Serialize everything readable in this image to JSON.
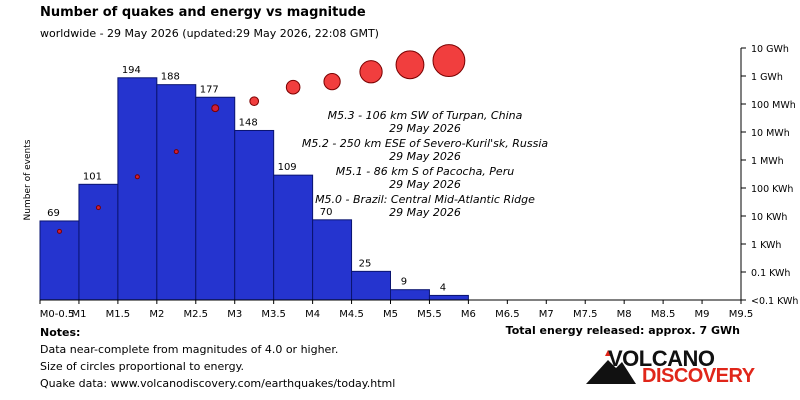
{
  "header": {
    "title": "Number of quakes and energy vs magnitude",
    "subtitle": "worldwide - 29 May 2026 (updated:29 May 2026, 22:08 GMT)"
  },
  "chart_data": {
    "type": "bar",
    "title": "Number of quakes and energy vs magnitude",
    "ylabel": "Number of events",
    "categories": [
      "M0-0.5",
      "M1",
      "M1.5",
      "M2",
      "M2.5",
      "M3",
      "M3.5",
      "M4",
      "M4.5",
      "M5",
      "M5.5",
      "M6",
      "M6.5",
      "M7",
      "M7.5",
      "M8",
      "M8.5",
      "M9",
      "M9.5"
    ],
    "x_ticks": [
      0.5,
      1,
      1.5,
      2,
      2.5,
      3,
      3.5,
      4,
      4.5,
      5,
      5.5,
      6,
      6.5,
      7,
      7.5,
      8,
      8.5,
      9,
      9.5
    ],
    "xlim": [
      0.5,
      9.5
    ],
    "ylim": [
      0,
      220
    ],
    "bars": [
      {
        "from": 0.5,
        "to": 1.0,
        "count": 69
      },
      {
        "from": 1.0,
        "to": 1.5,
        "count": 101
      },
      {
        "from": 1.5,
        "to": 2.0,
        "count": 194
      },
      {
        "from": 2.0,
        "to": 2.5,
        "count": 188
      },
      {
        "from": 2.5,
        "to": 3.0,
        "count": 177
      },
      {
        "from": 3.0,
        "to": 3.5,
        "count": 148
      },
      {
        "from": 3.5,
        "to": 4.0,
        "count": 109
      },
      {
        "from": 4.0,
        "to": 4.5,
        "count": 70
      },
      {
        "from": 4.5,
        "to": 5.0,
        "count": 25
      },
      {
        "from": 5.0,
        "to": 5.5,
        "count": 9
      },
      {
        "from": 5.5,
        "to": 6.0,
        "count": 4
      }
    ],
    "energy_axis": {
      "scale": "log",
      "labels": [
        "<0.1 KWh",
        "0.1 KWh",
        "1 KWh",
        "10 KWh",
        "100 KWh",
        "1 MWh",
        "10 MWh",
        "100 MWh",
        "1 GWh",
        "10 GWh"
      ]
    },
    "energy_circles": [
      {
        "magnitude": 0.75,
        "energy_level": 2.45
      },
      {
        "magnitude": 1.25,
        "energy_level": 3.3
      },
      {
        "magnitude": 1.75,
        "energy_level": 4.4
      },
      {
        "magnitude": 2.25,
        "energy_level": 5.3
      },
      {
        "magnitude": 2.75,
        "energy_level": 6.85
      },
      {
        "magnitude": 3.25,
        "energy_level": 7.1
      },
      {
        "magnitude": 3.75,
        "energy_level": 7.6
      },
      {
        "magnitude": 4.25,
        "energy_level": 7.8
      },
      {
        "magnitude": 4.75,
        "energy_level": 8.15
      },
      {
        "magnitude": 5.25,
        "energy_level": 8.4
      },
      {
        "magnitude": 5.75,
        "energy_level": 8.55
      }
    ],
    "annotations": [
      {
        "line1": "M5.3 - 106 km SW of Turpan, China",
        "line2": "29 May 2026"
      },
      {
        "line1": "M5.2 - 250 km ESE of Severo-Kuril'sk, Russia",
        "line2": "29 May 2026"
      },
      {
        "line1": "M5.1 - 86 km S of Pacocha, Peru",
        "line2": "29 May 2026"
      },
      {
        "line1": "M5.0 - Brazil: Central Mid-Atlantic Ridge",
        "line2": "29 May 2026"
      }
    ],
    "colors": {
      "bar_fill": "#2534cf",
      "bar_stroke": "#0a1470",
      "circle_fill": "#ee1c1c",
      "circle_stroke": "#7a0000"
    }
  },
  "footer": {
    "total_energy": "Total energy released: approx. 7 GWh",
    "notes_heading": "Notes:",
    "note1": "Data near-complete from magnitudes of 4.0 or higher.",
    "note2": "Size of circles proportional to energy.",
    "note3": "Quake data: www.volcanodiscovery.com/earthquakes/today.html"
  },
  "logo": {
    "word1": "VOLCANO",
    "word2": "DISCOVERY"
  }
}
